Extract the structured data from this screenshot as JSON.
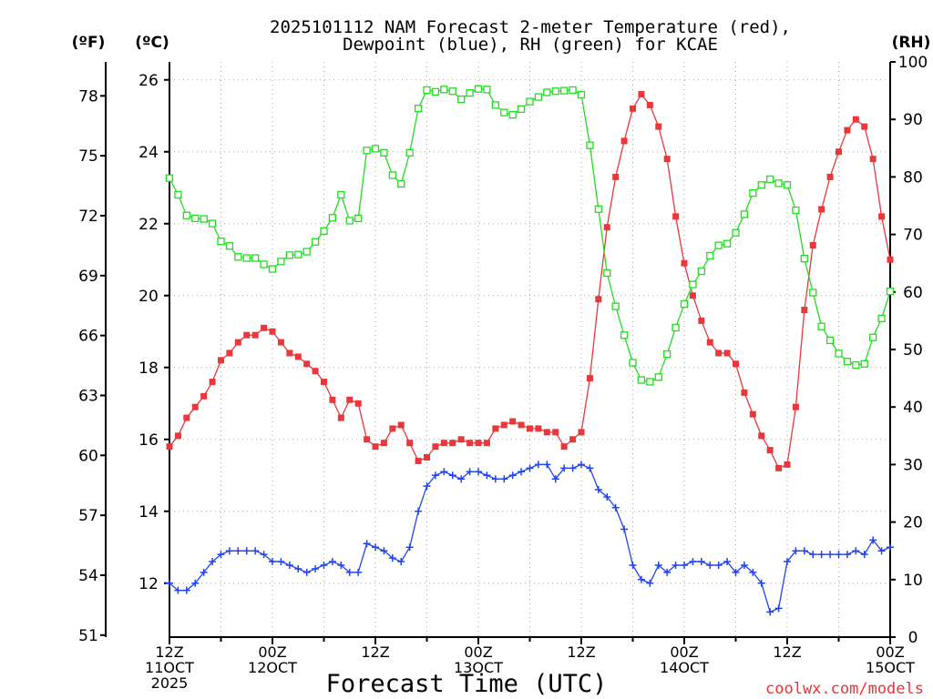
{
  "chart_data": {
    "type": "line",
    "title_line1": "2025101112 NAM Forecast 2-meter Temperature (red),",
    "title_line2": "Dewpoint (blue), RH (green) for KCAE",
    "xlabel": "Forecast Time (UTC)",
    "left_axis_f_label": "(ºF)",
    "left_axis_c_label": "(ºC)",
    "right_axis_label": "(RH)",
    "watermark": "coolwx.com/models",
    "x_tick_labels": [
      {
        "hour": 0,
        "line1": "12Z",
        "line2": "11OCT",
        "line3": "2025"
      },
      {
        "hour": 12,
        "line1": "00Z",
        "line2": "12OCT",
        "line3": ""
      },
      {
        "hour": 24,
        "line1": "12Z",
        "line2": "",
        "line3": ""
      },
      {
        "hour": 36,
        "line1": "00Z",
        "line2": "13OCT",
        "line3": ""
      },
      {
        "hour": 48,
        "line1": "12Z",
        "line2": "",
        "line3": ""
      },
      {
        "hour": 60,
        "line1": "00Z",
        "line2": "14OCT",
        "line3": ""
      },
      {
        "hour": 72,
        "line1": "12Z",
        "line2": "",
        "line3": ""
      },
      {
        "hour": 84,
        "line1": "00Z",
        "line2": "15OCT",
        "line3": ""
      }
    ],
    "xlim_hours": [
      0,
      84
    ],
    "celsius_ylim": [
      10.5,
      26.5
    ],
    "celsius_ticks": [
      12,
      14,
      16,
      18,
      20,
      22,
      24,
      26
    ],
    "fahrenheit_ticks": [
      51,
      54,
      57,
      60,
      63,
      66,
      69,
      72,
      75,
      78
    ],
    "rh_ylim": [
      0,
      100
    ],
    "rh_ticks": [
      0,
      10,
      20,
      30,
      40,
      50,
      60,
      70,
      80,
      90,
      100
    ],
    "grid": true,
    "series": [
      {
        "name": "Temperature",
        "color": "#e8383c",
        "marker": "filled-square",
        "axis": "celsius",
        "x_hours": [
          0,
          1,
          2,
          3,
          4,
          5,
          6,
          7,
          8,
          9,
          10,
          11,
          12,
          13,
          14,
          15,
          16,
          17,
          18,
          19,
          20,
          21,
          22,
          23,
          24,
          25,
          26,
          27,
          28,
          29,
          30,
          31,
          32,
          33,
          34,
          35,
          36,
          37,
          38,
          39,
          40,
          41,
          42,
          43,
          44,
          45,
          46,
          47,
          48,
          49,
          50,
          51,
          52,
          53,
          54,
          55,
          56,
          57,
          58,
          59,
          60,
          61,
          62,
          63,
          64,
          65,
          66,
          67,
          68,
          69,
          70,
          71,
          72,
          73,
          74,
          75,
          76,
          77,
          78,
          79,
          80,
          81,
          82,
          83,
          84
        ],
        "values": [
          15.8,
          16.1,
          16.6,
          16.9,
          17.2,
          17.6,
          18.2,
          18.4,
          18.7,
          18.9,
          18.9,
          19.1,
          19.0,
          18.7,
          18.4,
          18.3,
          18.1,
          17.9,
          17.6,
          17.1,
          16.6,
          17.1,
          17.0,
          16.0,
          15.8,
          15.9,
          16.3,
          16.4,
          15.9,
          15.4,
          15.5,
          15.8,
          15.9,
          15.9,
          16.0,
          15.9,
          15.9,
          15.9,
          16.3,
          16.4,
          16.5,
          16.4,
          16.3,
          16.3,
          16.2,
          16.2,
          15.8,
          16.0,
          16.2,
          17.7,
          19.9,
          21.9,
          23.3,
          24.3,
          25.2,
          25.6,
          25.3,
          24.7,
          23.8,
          22.2,
          20.9,
          20.0,
          19.3,
          18.7,
          18.4,
          18.4,
          18.1,
          17.3,
          16.7,
          16.1,
          15.7,
          15.2,
          15.3,
          16.9,
          19.6,
          21.4,
          22.4,
          23.3,
          24.0,
          24.6,
          24.9,
          24.7,
          23.8,
          22.2,
          21.0
        ]
      },
      {
        "name": "Dewpoint",
        "color": "#2244ee",
        "marker": "plus",
        "axis": "celsius",
        "x_hours": [
          0,
          1,
          2,
          3,
          4,
          5,
          6,
          7,
          8,
          9,
          10,
          11,
          12,
          13,
          14,
          15,
          16,
          17,
          18,
          19,
          20,
          21,
          22,
          23,
          24,
          25,
          26,
          27,
          28,
          29,
          30,
          31,
          32,
          33,
          34,
          35,
          36,
          37,
          38,
          39,
          40,
          41,
          42,
          43,
          44,
          45,
          46,
          47,
          48,
          49,
          50,
          51,
          52,
          53,
          54,
          55,
          56,
          57,
          58,
          59,
          60,
          61,
          62,
          63,
          64,
          65,
          66,
          67,
          68,
          69,
          70,
          71,
          72,
          73,
          74,
          75,
          76,
          77,
          78,
          79,
          80,
          81,
          82,
          83,
          84
        ],
        "values": [
          12.0,
          11.8,
          11.8,
          12.0,
          12.3,
          12.6,
          12.8,
          12.9,
          12.9,
          12.9,
          12.9,
          12.8,
          12.6,
          12.6,
          12.5,
          12.4,
          12.3,
          12.4,
          12.5,
          12.6,
          12.5,
          12.3,
          12.3,
          13.1,
          13.0,
          12.9,
          12.7,
          12.6,
          13.0,
          14.0,
          14.7,
          15.0,
          15.1,
          15.0,
          14.9,
          15.1,
          15.1,
          15.0,
          14.9,
          14.9,
          15.0,
          15.1,
          15.2,
          15.3,
          15.3,
          14.9,
          15.2,
          15.2,
          15.3,
          15.2,
          14.6,
          14.4,
          14.1,
          13.5,
          12.5,
          12.1,
          12.0,
          12.5,
          12.3,
          12.5,
          12.5,
          12.6,
          12.6,
          12.5,
          12.5,
          12.6,
          12.3,
          12.5,
          12.3,
          12.0,
          11.2,
          11.3,
          12.6,
          12.9,
          12.9,
          12.8,
          12.8,
          12.8,
          12.8,
          12.8,
          12.9,
          12.8,
          13.2,
          12.9,
          13.0
        ]
      },
      {
        "name": "RH",
        "color": "#22dd22",
        "marker": "open-square",
        "axis": "rh",
        "x_hours": [
          0,
          1,
          2,
          3,
          4,
          5,
          6,
          7,
          8,
          9,
          10,
          11,
          12,
          13,
          14,
          15,
          16,
          17,
          18,
          19,
          20,
          21,
          22,
          23,
          24,
          25,
          26,
          27,
          28,
          29,
          30,
          31,
          32,
          33,
          34,
          35,
          36,
          37,
          38,
          39,
          40,
          41,
          42,
          43,
          44,
          45,
          46,
          47,
          48,
          49,
          50,
          51,
          52,
          53,
          54,
          55,
          56,
          57,
          58,
          59,
          60,
          61,
          62,
          63,
          64,
          65,
          66,
          67,
          68,
          69,
          70,
          71,
          72,
          73,
          74,
          75,
          76,
          77,
          78,
          79,
          80,
          81,
          82,
          83,
          84
        ],
        "values": [
          79.8,
          76.9,
          73.3,
          72.8,
          72.7,
          71.9,
          68.8,
          68.0,
          66.1,
          65.9,
          65.9,
          64.8,
          64.0,
          65.3,
          66.4,
          66.5,
          67.0,
          68.7,
          70.6,
          72.9,
          76.9,
          72.4,
          72.8,
          84.6,
          84.9,
          84.2,
          80.3,
          78.8,
          84.2,
          91.9,
          95.1,
          94.8,
          95.2,
          94.9,
          93.5,
          94.6,
          95.3,
          95.2,
          92.5,
          91.2,
          90.8,
          91.8,
          93.1,
          93.9,
          94.7,
          94.9,
          95.0,
          95.1,
          94.3,
          85.5,
          74.4,
          63.3,
          57.5,
          52.5,
          47.7,
          44.7,
          44.4,
          45.2,
          49.2,
          53.8,
          57.9,
          61.3,
          63.6,
          66.3,
          68.1,
          68.4,
          70.3,
          73.5,
          77.2,
          78.6,
          79.6,
          78.9,
          78.6,
          74.2,
          65.8,
          59.9,
          54.0,
          51.6,
          49.3,
          47.9,
          47.3,
          47.5,
          52.1,
          55.4,
          60.1
        ]
      }
    ]
  }
}
